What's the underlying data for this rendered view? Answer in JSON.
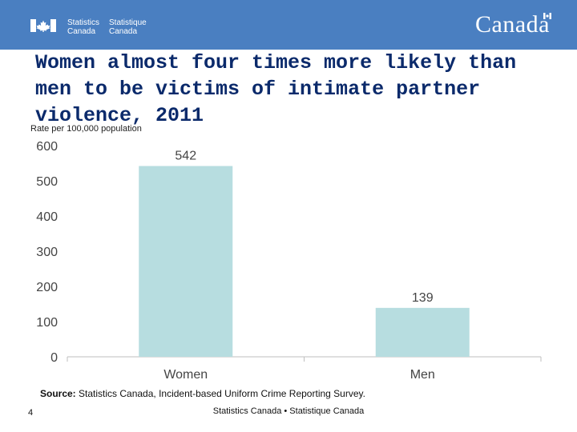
{
  "header": {
    "org_en_line1": "Statistics",
    "org_en_line2": "Canada",
    "org_fr_line1": "Statistique",
    "org_fr_line2": "Canada",
    "wordmark": "Canada",
    "color": "#4a7fc1"
  },
  "slide": {
    "title": "Women almost four times more likely than men to be victims of intimate partner violence, 2011",
    "page_number": "4",
    "source_label": "Source:",
    "source_text": " Statistics Canada, Incident-based Uniform Crime Reporting Survey.",
    "footer": "Statistics Canada • Statistique Canada"
  },
  "chart_data": {
    "type": "bar",
    "title": "",
    "ylabel": "Rate per 100,000 population",
    "xlabel": "",
    "categories": [
      "Women",
      "Men"
    ],
    "values": [
      542,
      139
    ],
    "value_labels": [
      "542",
      "139"
    ],
    "ylim": [
      0,
      600
    ],
    "yticks": [
      0,
      100,
      200,
      300,
      400,
      500,
      600
    ],
    "bar_color": "#b7dde0",
    "grid": false
  }
}
